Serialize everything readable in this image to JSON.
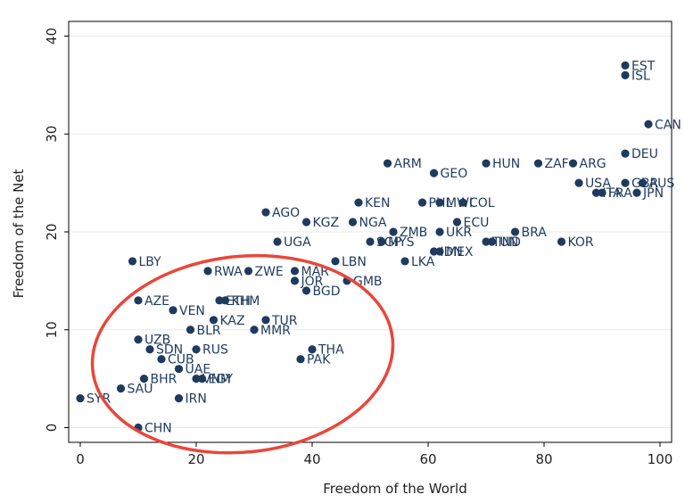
{
  "chart_data": {
    "type": "scatter",
    "xlabel": "Freedom of the World",
    "ylabel": "Freedom of the Net",
    "xlim": [
      -2,
      102
    ],
    "ylim": [
      -1.5,
      41.5
    ],
    "xticks": [
      0,
      20,
      40,
      60,
      80,
      100
    ],
    "yticks": [
      0,
      10,
      20,
      30,
      40
    ],
    "grid": "horizontal",
    "colors": {
      "point": "#1f3a5f",
      "grid": "#e8e8e8",
      "annotation": "#e8473a",
      "frame": "#000000"
    },
    "annotations": [
      {
        "shape": "ellipse",
        "description": "circle",
        "cx": 28,
        "cy": 7.5,
        "rx": 26,
        "ry": 10
      }
    ],
    "points": [
      {
        "label": "EST",
        "x": 94,
        "y": 37
      },
      {
        "label": "ISL",
        "x": 94,
        "y": 36
      },
      {
        "label": "CAN",
        "x": 98,
        "y": 31
      },
      {
        "label": "DEU",
        "x": 94,
        "y": 28
      },
      {
        "label": "ARM",
        "x": 53,
        "y": 27
      },
      {
        "label": "HUN",
        "x": 70,
        "y": 27
      },
      {
        "label": "ZAF",
        "x": 79,
        "y": 27
      },
      {
        "label": "ARG",
        "x": 85,
        "y": 27
      },
      {
        "label": "GEO",
        "x": 61,
        "y": 26
      },
      {
        "label": "USA",
        "x": 86,
        "y": 25
      },
      {
        "label": "GBR",
        "x": 94,
        "y": 25
      },
      {
        "label": "AUS",
        "x": 97,
        "y": 25
      },
      {
        "label": "ITA",
        "x": 89,
        "y": 24
      },
      {
        "label": "FRA",
        "x": 90,
        "y": 24
      },
      {
        "label": "JPN",
        "x": 96,
        "y": 24
      },
      {
        "label": "KEN",
        "x": 48,
        "y": 23
      },
      {
        "label": "PHL",
        "x": 59,
        "y": 23
      },
      {
        "label": "MWI",
        "x": 62,
        "y": 23
      },
      {
        "label": "COL",
        "x": 66,
        "y": 23
      },
      {
        "label": "AGO",
        "x": 32,
        "y": 22
      },
      {
        "label": "KGZ",
        "x": 39,
        "y": 21
      },
      {
        "label": "NGA",
        "x": 47,
        "y": 21
      },
      {
        "label": "ECU",
        "x": 65,
        "y": 21
      },
      {
        "label": "ZMB",
        "x": 54,
        "y": 20
      },
      {
        "label": "UKR",
        "x": 62,
        "y": 20
      },
      {
        "label": "BRA",
        "x": 75,
        "y": 20
      },
      {
        "label": "UGA",
        "x": 34,
        "y": 19
      },
      {
        "label": "SGP",
        "x": 50,
        "y": 19
      },
      {
        "label": "MYS",
        "x": 52,
        "y": 19
      },
      {
        "label": "TUN",
        "x": 70,
        "y": 19
      },
      {
        "label": "IND",
        "x": 71,
        "y": 19
      },
      {
        "label": "KOR",
        "x": 83,
        "y": 19
      },
      {
        "label": "IDN",
        "x": 61,
        "y": 18
      },
      {
        "label": "MEX",
        "x": 62,
        "y": 18
      },
      {
        "label": "LBY",
        "x": 9,
        "y": 17
      },
      {
        "label": "LBN",
        "x": 44,
        "y": 17
      },
      {
        "label": "LKA",
        "x": 56,
        "y": 17
      },
      {
        "label": "RWA",
        "x": 22,
        "y": 16
      },
      {
        "label": "ZWE",
        "x": 29,
        "y": 16
      },
      {
        "label": "MAR",
        "x": 37,
        "y": 16
      },
      {
        "label": "JOR",
        "x": 37,
        "y": 15
      },
      {
        "label": "GMB",
        "x": 46,
        "y": 15
      },
      {
        "label": "BGD",
        "x": 39,
        "y": 14
      },
      {
        "label": "AZE",
        "x": 10,
        "y": 13
      },
      {
        "label": "ETH",
        "x": 24,
        "y": 13
      },
      {
        "label": "KHM",
        "x": 25,
        "y": 13
      },
      {
        "label": "VEN",
        "x": 16,
        "y": 12
      },
      {
        "label": "KAZ",
        "x": 23,
        "y": 11
      },
      {
        "label": "TUR",
        "x": 32,
        "y": 11
      },
      {
        "label": "BLR",
        "x": 19,
        "y": 10
      },
      {
        "label": "MMR",
        "x": 30,
        "y": 10
      },
      {
        "label": "UZB",
        "x": 10,
        "y": 9
      },
      {
        "label": "SDN",
        "x": 12,
        "y": 8
      },
      {
        "label": "RUS",
        "x": 20,
        "y": 8
      },
      {
        "label": "THA",
        "x": 40,
        "y": 8
      },
      {
        "label": "CUB",
        "x": 14,
        "y": 7
      },
      {
        "label": "PAK",
        "x": 38,
        "y": 7
      },
      {
        "label": "UAE",
        "x": 17,
        "y": 6
      },
      {
        "label": "BHR",
        "x": 11,
        "y": 5
      },
      {
        "label": "VNM",
        "x": 20,
        "y": 5
      },
      {
        "label": "EGY",
        "x": 21,
        "y": 5
      },
      {
        "label": "SAU",
        "x": 7,
        "y": 4
      },
      {
        "label": "SYR",
        "x": 0,
        "y": 3
      },
      {
        "label": "IRN",
        "x": 17,
        "y": 3
      },
      {
        "label": "CHN",
        "x": 10,
        "y": 0
      }
    ]
  }
}
